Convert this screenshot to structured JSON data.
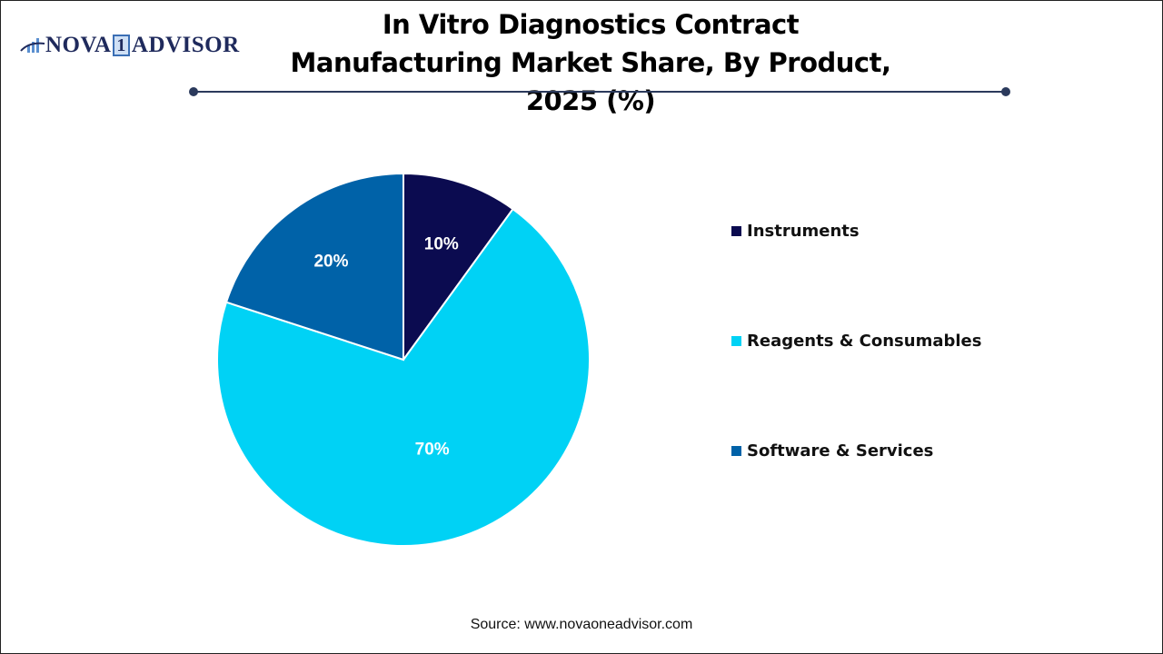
{
  "logo": {
    "text_left": "NOVA",
    "text_mid": "1",
    "text_right": "ADVISOR"
  },
  "title": "In Vitro Diagnostics Contract Manufacturing Market Share, By Product, 2025 (%)",
  "source": "Source: www.novaoneadvisor.com",
  "chart_data": {
    "type": "pie",
    "title": "In Vitro Diagnostics Contract Manufacturing Market Share, By Product, 2025 (%)",
    "categories": [
      "Instruments",
      "Reagents & Consumables",
      "Software & Services"
    ],
    "values": [
      10,
      70,
      20
    ],
    "labels": [
      "10%",
      "70%",
      "20%"
    ],
    "colors": [
      "#0b0b50",
      "#00d2f5",
      "#0062a8"
    ],
    "start_angle": "top, clockwise",
    "legend_position": "right"
  }
}
